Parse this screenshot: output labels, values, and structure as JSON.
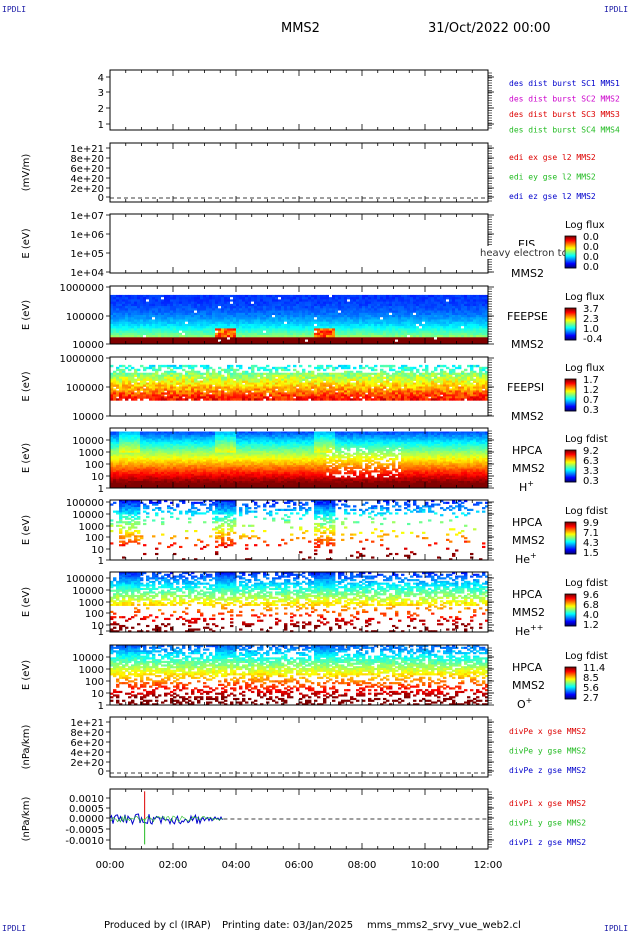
{
  "header": {
    "corner_tag": "IPDLI",
    "spacecraft": "MMS2",
    "datetime": "31/Oct/2022 00:00"
  },
  "footer": {
    "producer": "Produced by cl (IRAP)",
    "printing_date": "Printing date: 03/Jan/2025",
    "file": "mms_mms2_srvy_vue_web2.cl"
  },
  "x_axis": {
    "ticks": [
      "00:00",
      "02:00",
      "04:00",
      "06:00",
      "08:00",
      "10:00",
      "12:00"
    ],
    "range_hours": [
      0,
      12
    ]
  },
  "colors": {
    "red": "#dd0000",
    "magenta": "#cc00cc",
    "blue": "#0000cc",
    "green": "#22bb22"
  },
  "chart_data": [
    {
      "type": "line",
      "panel": "burst",
      "y_ticks": [
        "4",
        "3",
        "2",
        "1"
      ],
      "ylim": [
        0.5,
        4.5
      ],
      "ylabel": "",
      "legend": [
        {
          "text": "des dist burst SC1 MMS1",
          "color": "#0000cc"
        },
        {
          "text": "des dist burst SC2 MMS2",
          "color": "#cc00cc"
        },
        {
          "text": "des dist burst SC3 MMS3",
          "color": "#dd0000"
        },
        {
          "text": "des dist burst SC4 MMS4",
          "color": "#22bb22"
        }
      ]
    },
    {
      "type": "line",
      "panel": "edi",
      "ylabel": "(mV/m)",
      "y_ticks": [
        "1e+21",
        "8e+20",
        "6e+20",
        "4e+20",
        "2e+20",
        "0"
      ],
      "ylim": [
        0,
        1e+21
      ],
      "zero_line": true,
      "legend": [
        {
          "text": "edi ex gse l2 MMS2",
          "color": "#dd0000"
        },
        {
          "text": "edi ey gse l2 MMS2",
          "color": "#22bb22"
        },
        {
          "text": "edi ez gse l2 MMS2",
          "color": "#0000cc"
        }
      ]
    },
    {
      "type": "heatmap",
      "panel": "eis",
      "ylabel": "E (eV)",
      "y_ticks": [
        "1e+07",
        "1e+06",
        "1e+05",
        "1e+04"
      ],
      "side_labels": [
        "EIS",
        "MMS2"
      ],
      "overlay_text": "heavy electron to",
      "colorbar": {
        "title": "Log flux",
        "ticks": [
          "0.0",
          "0.0",
          "0.0",
          "0.0"
        ]
      },
      "fill": "none"
    },
    {
      "type": "heatmap",
      "panel": "feepse",
      "ylabel": "E (eV)",
      "y_ticks": [
        "1000000",
        "100000",
        "10000"
      ],
      "side_labels": [
        "FEEPSE",
        "MMS2"
      ],
      "colorbar": {
        "title": "Log flux",
        "ticks": [
          "3.7",
          "2.3",
          "1.0",
          "-0.4"
        ]
      },
      "fill": "feepse"
    },
    {
      "type": "heatmap",
      "panel": "feepsi",
      "ylabel": "E (eV)",
      "y_ticks": [
        "1000000",
        "100000",
        "10000"
      ],
      "side_labels": [
        "FEEPSI",
        "MMS2"
      ],
      "colorbar": {
        "title": "Log flux",
        "ticks": [
          "1.7",
          "1.2",
          "0.7",
          "0.3"
        ]
      },
      "fill": "feepsi"
    },
    {
      "type": "heatmap",
      "panel": "hpca_h",
      "ylabel": "E (eV)",
      "y_ticks": [
        "10000",
        "1000",
        "100",
        "10",
        "1"
      ],
      "side_labels": [
        "HPCA",
        "MMS2"
      ],
      "species": "H",
      "charge": "+",
      "colorbar": {
        "title": "Log fdist",
        "ticks": [
          "9.2",
          "6.3",
          "3.3",
          "0.3"
        ]
      },
      "fill": "hpca_h"
    },
    {
      "type": "heatmap",
      "panel": "hpca_he",
      "ylabel": "E (eV)",
      "y_ticks": [
        "100000",
        "10000",
        "1000",
        "100",
        "10",
        "1"
      ],
      "side_labels": [
        "HPCA",
        "MMS2"
      ],
      "species": "He",
      "charge": "+",
      "colorbar": {
        "title": "Log fdist",
        "ticks": [
          "9.9",
          "7.1",
          "4.3",
          "1.5"
        ]
      },
      "fill": "hpca_he"
    },
    {
      "type": "heatmap",
      "panel": "hpca_hepp",
      "ylabel": "E (eV)",
      "y_ticks": [
        "100000",
        "10000",
        "1000",
        "100",
        "10",
        "1"
      ],
      "side_labels": [
        "HPCA",
        "MMS2"
      ],
      "species": "He",
      "charge": "++",
      "colorbar": {
        "title": "Log fdist",
        "ticks": [
          "9.6",
          "6.8",
          "4.0",
          "1.2"
        ]
      },
      "fill": "hpca_hepp"
    },
    {
      "type": "heatmap",
      "panel": "hpca_o",
      "ylabel": "E (eV)",
      "y_ticks": [
        "10000",
        "1000",
        "100",
        "10",
        "1"
      ],
      "side_labels": [
        "HPCA",
        "MMS2"
      ],
      "species": "O",
      "charge": "+",
      "colorbar": {
        "title": "Log fdist",
        "ticks": [
          "11.4",
          "8.5",
          "5.6",
          "2.7"
        ]
      },
      "fill": "hpca_o"
    },
    {
      "type": "line",
      "panel": "divpe",
      "ylabel": "(nPa/km)",
      "y_ticks": [
        "1e+21",
        "8e+20",
        "6e+20",
        "4e+20",
        "2e+20",
        "0"
      ],
      "ylim": [
        0,
        1e+21
      ],
      "zero_line": true,
      "legend": [
        {
          "text": "divPe x gse MMS2",
          "color": "#dd0000"
        },
        {
          "text": "divPe y gse MMS2",
          "color": "#22bb22"
        },
        {
          "text": "divPe z gse MMS2",
          "color": "#0000cc"
        }
      ]
    },
    {
      "type": "line",
      "panel": "divpi",
      "ylabel": "(nPa/km)",
      "y_ticks": [
        "0.0010",
        "0.0005",
        "0.0000",
        "-0.0005",
        "-0.0010"
      ],
      "ylim": [
        -0.0013,
        0.0013
      ],
      "zero_line": true,
      "series_end_hour": 3.6,
      "spike_hour": 1.1,
      "legend": [
        {
          "text": "divPi x gse MMS2",
          "color": "#dd0000"
        },
        {
          "text": "divPi y gse MMS2",
          "color": "#22bb22"
        },
        {
          "text": "divPi z gse MMS2",
          "color": "#0000cc"
        }
      ]
    }
  ]
}
